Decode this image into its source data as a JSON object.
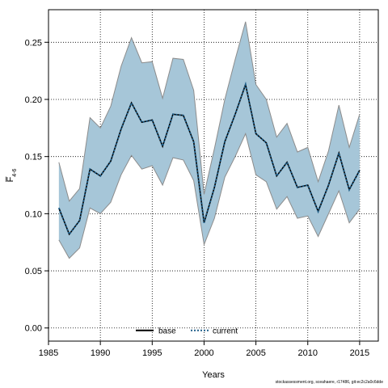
{
  "chart_data": {
    "type": "line",
    "xlabel": "Years",
    "ylabel": "F̅",
    "ylabel_sub": "4-6",
    "xlim": [
      1985,
      2016.8
    ],
    "ylim": [
      -0.0115,
      0.2785
    ],
    "x_ticks": [
      1985,
      1990,
      1995,
      2000,
      2005,
      2010,
      2015
    ],
    "y_ticks": [
      0.0,
      0.05,
      0.1,
      0.15,
      0.2,
      0.25
    ],
    "y_tick_labels": [
      "0.00",
      "0.05",
      "0.10",
      "0.15",
      "0.20",
      "0.25"
    ],
    "grid": true,
    "legend_position": "bottom-center",
    "x": [
      1986,
      1987,
      1988,
      1989,
      1990,
      1991,
      1992,
      1993,
      1994,
      1995,
      1996,
      1997,
      1998,
      1999,
      2000,
      2001,
      2002,
      2003,
      2004,
      2005,
      2006,
      2007,
      2008,
      2009,
      2010,
      2011,
      2012,
      2013,
      2014,
      2015
    ],
    "series": [
      {
        "name": "base",
        "style": "solid",
        "color": "#000000",
        "values": [
          0.105,
          0.082,
          0.094,
          0.139,
          0.133,
          0.146,
          0.174,
          0.197,
          0.18,
          0.182,
          0.159,
          0.187,
          0.186,
          0.163,
          0.092,
          0.123,
          0.163,
          0.187,
          0.213,
          0.17,
          0.162,
          0.133,
          0.145,
          0.123,
          0.125,
          0.102,
          0.125,
          0.153,
          0.121,
          0.138
        ]
      },
      {
        "name": "current",
        "style": "dotted",
        "color": "#1f5f8a",
        "values": [
          0.105,
          0.082,
          0.094,
          0.139,
          0.133,
          0.146,
          0.174,
          0.197,
          0.18,
          0.182,
          0.159,
          0.187,
          0.186,
          0.163,
          0.092,
          0.123,
          0.163,
          0.187,
          0.213,
          0.17,
          0.162,
          0.133,
          0.145,
          0.123,
          0.125,
          0.102,
          0.125,
          0.153,
          0.121,
          0.138
        ]
      }
    ],
    "band": {
      "fill": "#a6c6d8",
      "edge": "#8c8c8c",
      "upper": [
        0.145,
        0.111,
        0.122,
        0.184,
        0.175,
        0.194,
        0.229,
        0.254,
        0.232,
        0.233,
        0.201,
        0.236,
        0.235,
        0.208,
        0.117,
        0.157,
        0.2,
        0.235,
        0.268,
        0.213,
        0.2,
        0.167,
        0.179,
        0.154,
        0.158,
        0.128,
        0.155,
        0.195,
        0.158,
        0.187
      ],
      "lower": [
        0.077,
        0.061,
        0.07,
        0.105,
        0.1,
        0.11,
        0.134,
        0.151,
        0.139,
        0.142,
        0.125,
        0.149,
        0.147,
        0.129,
        0.073,
        0.096,
        0.132,
        0.15,
        0.17,
        0.134,
        0.128,
        0.104,
        0.115,
        0.096,
        0.098,
        0.08,
        0.1,
        0.12,
        0.092,
        0.104
      ]
    }
  },
  "footer": "stockassessment.org, sceahaere, r17486, git:ec2c2a0c6dde"
}
